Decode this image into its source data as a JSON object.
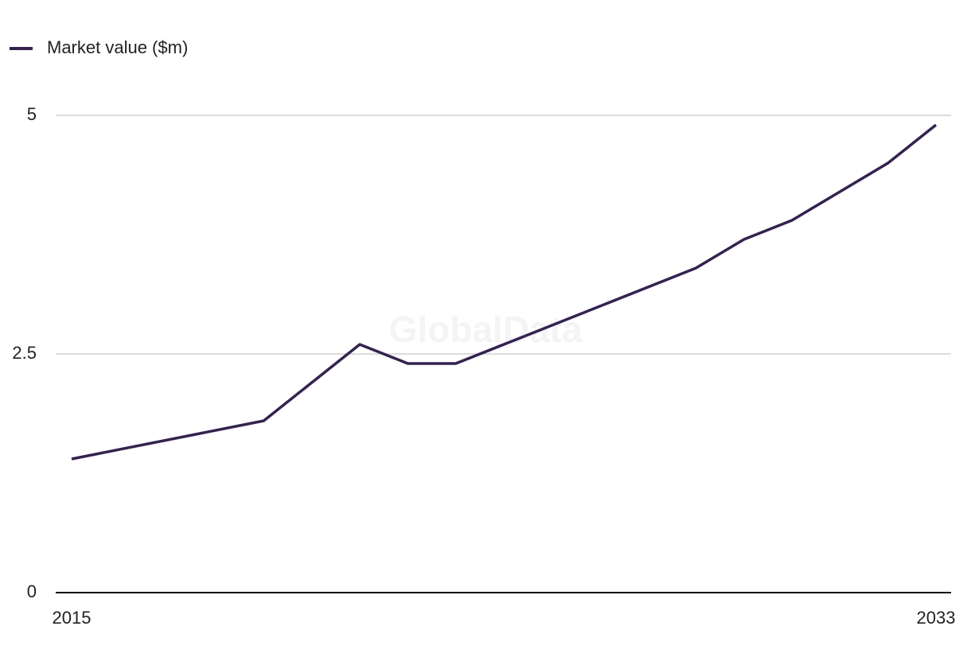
{
  "chart_data": {
    "type": "line",
    "watermark": "GlobalData",
    "x": [
      2015,
      2019,
      2021,
      2022,
      2023,
      2028,
      2029,
      2030,
      2032,
      2033
    ],
    "series": [
      {
        "name": "Market value ($m)",
        "color": "#35224f",
        "values": [
          1.4,
          1.8,
          2.6,
          2.4,
          2.4,
          3.4,
          3.7,
          3.9,
          4.5,
          4.9
        ]
      }
    ],
    "xlim": [
      2015,
      2033
    ],
    "xticks": [
      2015,
      2033
    ],
    "ylim": [
      0,
      5
    ],
    "yticks": [
      0,
      2.5,
      5
    ],
    "grid": true,
    "legend": "top-left"
  }
}
